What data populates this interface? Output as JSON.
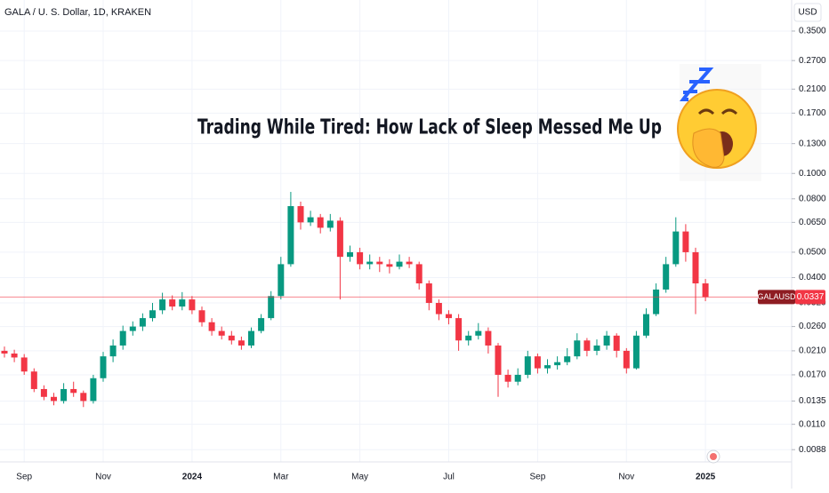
{
  "chart_data": {
    "type": "candlestick",
    "title": "GALA / U. S. Dollar, 1D, KRAKEN",
    "headline": "Trading While Tired: How Lack of Sleep Messed Me Up",
    "currency": "USD",
    "log_scale": true,
    "grid": true,
    "up_color": "#089981",
    "down_color": "#f23645",
    "categories": [
      null,
      null,
      "Sep",
      null,
      null,
      null,
      null,
      null,
      null,
      null,
      "Nov",
      null,
      null,
      null,
      null,
      null,
      null,
      null,
      null,
      "2024",
      null,
      null,
      null,
      null,
      null,
      null,
      null,
      null,
      "Mar",
      null,
      null,
      null,
      null,
      null,
      null,
      null,
      "May",
      null,
      null,
      null,
      null,
      null,
      null,
      null,
      null,
      "Jul",
      null,
      null,
      null,
      null,
      null,
      null,
      null,
      null,
      "Sep",
      null,
      null,
      null,
      null,
      null,
      null,
      null,
      null,
      "Nov",
      null,
      null,
      null,
      null,
      null,
      null,
      null,
      "2025"
    ],
    "open": [
      0.021,
      0.0205,
      0.0198,
      0.0175,
      0.015,
      0.014,
      0.0135,
      0.015,
      0.0145,
      0.0135,
      0.0165,
      0.02,
      0.022,
      0.025,
      0.026,
      0.028,
      0.03,
      0.033,
      0.031,
      0.033,
      0.03,
      0.027,
      0.025,
      0.024,
      0.023,
      0.022,
      0.025,
      0.028,
      0.034,
      0.045,
      0.075,
      0.065,
      0.068,
      0.062,
      0.066,
      0.048,
      0.05,
      0.045,
      0.046,
      0.045,
      0.044,
      0.046,
      0.045,
      0.038,
      0.032,
      0.029,
      0.028,
      0.023,
      0.024,
      0.025,
      0.022,
      0.017,
      0.016,
      0.017,
      0.02,
      0.018,
      0.0185,
      0.019,
      0.02,
      0.023,
      0.021,
      0.022,
      0.024,
      0.021,
      0.018,
      0.024,
      0.029,
      0.036,
      0.045,
      0.06,
      0.05,
      0.038
    ],
    "high": [
      0.0218,
      0.0212,
      0.0204,
      0.018,
      0.0155,
      0.0145,
      0.0158,
      0.016,
      0.0148,
      0.017,
      0.0208,
      0.0232,
      0.0262,
      0.0272,
      0.0292,
      0.032,
      0.035,
      0.0342,
      0.0352,
      0.034,
      0.031,
      0.028,
      0.026,
      0.025,
      0.0238,
      0.0258,
      0.029,
      0.0355,
      0.048,
      0.085,
      0.078,
      0.072,
      0.07,
      0.07,
      0.068,
      0.053,
      0.052,
      0.049,
      0.048,
      0.047,
      0.049,
      0.048,
      0.046,
      0.039,
      0.033,
      0.03,
      0.029,
      0.025,
      0.0268,
      0.0258,
      0.0225,
      0.0178,
      0.018,
      0.021,
      0.0205,
      0.0195,
      0.02,
      0.0215,
      0.0245,
      0.0235,
      0.0232,
      0.025,
      0.0245,
      0.0215,
      0.025,
      0.0305,
      0.038,
      0.048,
      0.068,
      0.064,
      0.052,
      0.0395
    ],
    "low": [
      0.0198,
      0.019,
      0.017,
      0.0146,
      0.0136,
      0.013,
      0.0132,
      0.014,
      0.0128,
      0.0132,
      0.016,
      0.019,
      0.0212,
      0.024,
      0.025,
      0.0272,
      0.029,
      0.03,
      0.03,
      0.029,
      0.026,
      0.024,
      0.0232,
      0.0222,
      0.0212,
      0.0215,
      0.0245,
      0.0275,
      0.033,
      0.044,
      0.061,
      0.063,
      0.059,
      0.06,
      0.033,
      0.046,
      0.043,
      0.043,
      0.042,
      0.0415,
      0.043,
      0.0435,
      0.036,
      0.03,
      0.0275,
      0.0265,
      0.021,
      0.022,
      0.0232,
      0.0205,
      0.014,
      0.0152,
      0.0155,
      0.0165,
      0.0172,
      0.0172,
      0.0178,
      0.0185,
      0.0195,
      0.02,
      0.0202,
      0.0212,
      0.0198,
      0.0172,
      0.0178,
      0.0235,
      0.0285,
      0.035,
      0.044,
      0.046,
      0.029,
      0.0325
    ],
    "close": [
      0.0205,
      0.0198,
      0.0175,
      0.015,
      0.014,
      0.0135,
      0.015,
      0.0145,
      0.0135,
      0.0165,
      0.02,
      0.022,
      0.025,
      0.026,
      0.028,
      0.03,
      0.033,
      0.031,
      0.033,
      0.03,
      0.027,
      0.025,
      0.024,
      0.023,
      0.022,
      0.025,
      0.028,
      0.034,
      0.045,
      0.075,
      0.065,
      0.068,
      0.062,
      0.066,
      0.048,
      0.05,
      0.045,
      0.046,
      0.045,
      0.044,
      0.046,
      0.045,
      0.038,
      0.032,
      0.029,
      0.028,
      0.023,
      0.024,
      0.025,
      0.022,
      0.017,
      0.016,
      0.017,
      0.02,
      0.018,
      0.0185,
      0.019,
      0.02,
      0.023,
      0.021,
      0.022,
      0.024,
      0.021,
      0.018,
      0.024,
      0.029,
      0.036,
      0.045,
      0.06,
      0.05,
      0.038,
      0.0337
    ],
    "ylim": [
      0.0079,
      0.46
    ],
    "yticks": [
      {
        "value": 0.35,
        "label": "0.3500"
      },
      {
        "value": 0.27,
        "label": "0.2700"
      },
      {
        "value": 0.21,
        "label": "0.2100"
      },
      {
        "value": 0.17,
        "label": "0.1700"
      },
      {
        "value": 0.13,
        "label": "0.1300"
      },
      {
        "value": 0.1,
        "label": "0.1000"
      },
      {
        "value": 0.08,
        "label": "0.0800"
      },
      {
        "value": 0.065,
        "label": "0.0650"
      },
      {
        "value": 0.05,
        "label": "0.0500"
      },
      {
        "value": 0.04,
        "label": "0.0400"
      },
      {
        "value": 0.032,
        "label": "0.0320"
      },
      {
        "value": 0.026,
        "label": "0.0260"
      },
      {
        "value": 0.021,
        "label": "0.0210"
      },
      {
        "value": 0.017,
        "label": "0.0170"
      },
      {
        "value": 0.0135,
        "label": "0.0135"
      },
      {
        "value": 0.011,
        "label": "0.0110"
      },
      {
        "value": 0.0088,
        "label": "0.0088"
      }
    ],
    "last_price": {
      "name": "GALAUSD",
      "value": 0.0337
    }
  }
}
